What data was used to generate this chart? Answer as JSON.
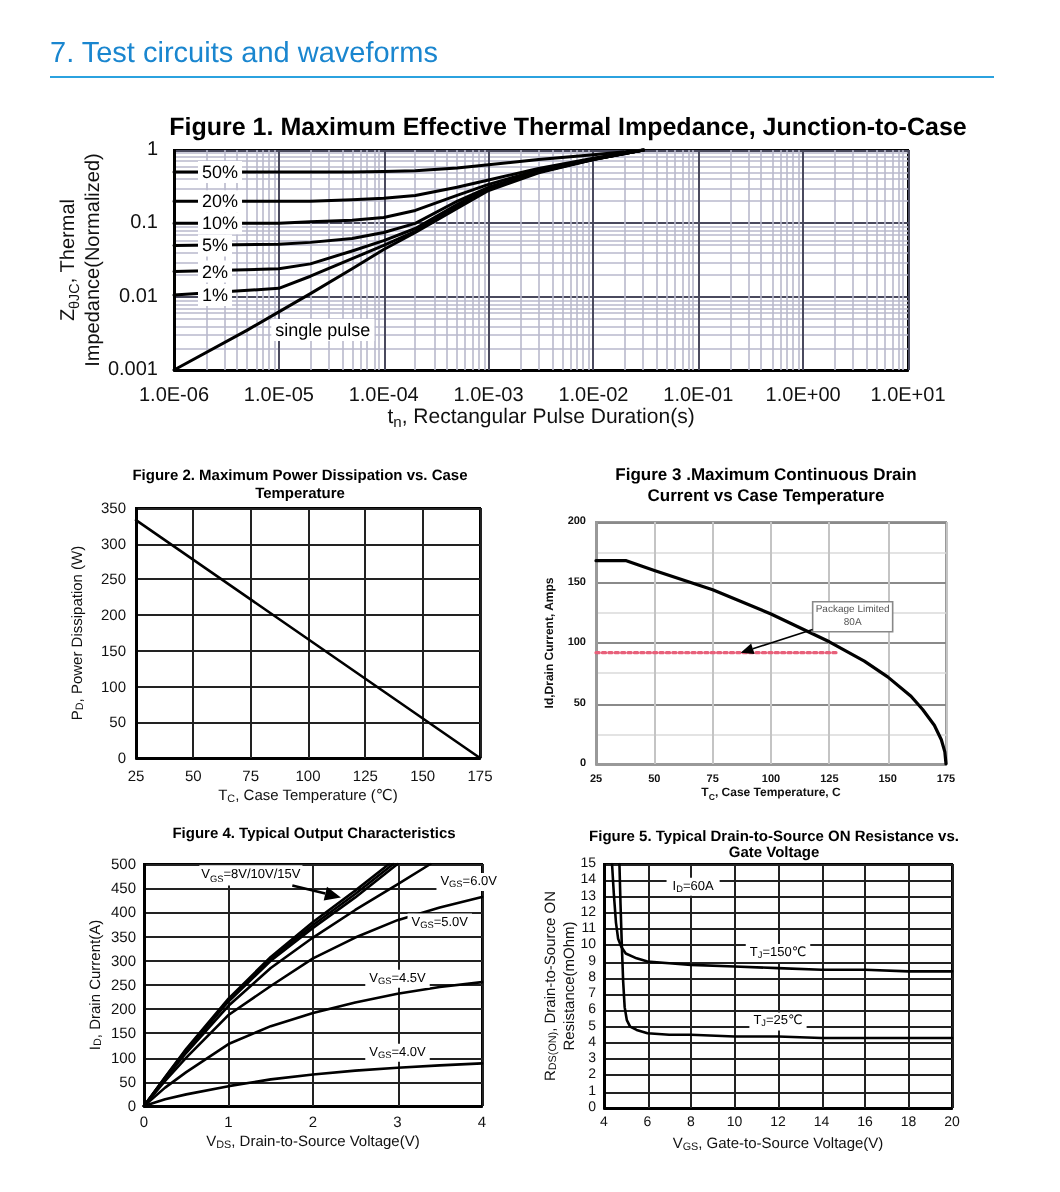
{
  "chart_data": [
    {
      "type": "other",
      "title": "7. Test circuits and waveforms"
    },
    {
      "type": "line",
      "title": "Figure 1. Maximum Effective Thermal Impedance, Junction-to-Case",
      "xlabel": "t$_{n}$, Rectangular Pulse Duration(s)",
      "ylabel": "Z$_{θJC}$, Thermal Impedance(Normalized)",
      "log": "xy",
      "xlim": [
        1e-06,
        10
      ],
      "ylim": [
        0.001,
        1
      ],
      "xticks": [
        {
          "value": 1e-06,
          "label": "1.0E-06"
        },
        {
          "value": 1e-05,
          "label": "1.0E-05"
        },
        {
          "value": 0.0001,
          "label": "1.0E-04"
        },
        {
          "value": 0.001,
          "label": "1.0E-03"
        },
        {
          "value": 0.01,
          "label": "1.0E-02"
        },
        {
          "value": 0.1,
          "label": "1.0E-01"
        },
        {
          "value": 1,
          "label": "1.0E+00"
        },
        {
          "value": 10,
          "label": "1.0E+01"
        },
        {
          "value": 2e-06,
          "label": null
        },
        {
          "value": 3e-06,
          "label": null
        },
        {
          "value": 4e-06,
          "label": null
        },
        {
          "value": 5e-06,
          "label": null
        },
        {
          "value": 6e-06,
          "label": null
        },
        {
          "value": 7e-06,
          "label": null
        },
        {
          "value": 8e-06,
          "label": null
        },
        {
          "value": 9e-06,
          "label": null
        },
        {
          "value": 2e-05,
          "label": null
        },
        {
          "value": 3e-05,
          "label": null
        },
        {
          "value": 4e-05,
          "label": null
        },
        {
          "value": 5e-05,
          "label": null
        },
        {
          "value": 6e-05,
          "label": null
        },
        {
          "value": 7e-05,
          "label": null
        },
        {
          "value": 8e-05,
          "label": null
        },
        {
          "value": 9e-05,
          "label": null
        },
        {
          "value": 0.0002,
          "label": null
        },
        {
          "value": 0.0003,
          "label": null
        },
        {
          "value": 0.0004,
          "label": null
        },
        {
          "value": 0.0005,
          "label": null
        },
        {
          "value": 0.0006,
          "label": null
        },
        {
          "value": 0.0007,
          "label": null
        },
        {
          "value": 0.0008,
          "label": null
        },
        {
          "value": 0.0009,
          "label": null
        },
        {
          "value": 0.002,
          "label": null
        },
        {
          "value": 0.003,
          "label": null
        },
        {
          "value": 0.004,
          "label": null
        },
        {
          "value": 0.005,
          "label": null
        },
        {
          "value": 0.006,
          "label": null
        },
        {
          "value": 0.007,
          "label": null
        },
        {
          "value": 0.008,
          "label": null
        },
        {
          "value": 0.009,
          "label": null
        },
        {
          "value": 0.02,
          "label": null
        },
        {
          "value": 0.03,
          "label": null
        },
        {
          "value": 0.04,
          "label": null
        },
        {
          "value": 0.05,
          "label": null
        },
        {
          "value": 0.06,
          "label": null
        },
        {
          "value": 0.07,
          "label": null
        },
        {
          "value": 0.08,
          "label": null
        },
        {
          "value": 0.09,
          "label": null
        },
        {
          "value": 0.2,
          "label": null
        },
        {
          "value": 0.3,
          "label": null
        },
        {
          "value": 0.4,
          "label": null
        },
        {
          "value": 0.5,
          "label": null
        },
        {
          "value": 0.6,
          "label": null
        },
        {
          "value": 0.7,
          "label": null
        },
        {
          "value": 0.8,
          "label": null
        },
        {
          "value": 0.9,
          "label": null
        },
        {
          "value": 2,
          "label": null
        },
        {
          "value": 3,
          "label": null
        },
        {
          "value": 4,
          "label": null
        },
        {
          "value": 5,
          "label": null
        },
        {
          "value": 6,
          "label": null
        },
        {
          "value": 7,
          "label": null
        },
        {
          "value": 8,
          "label": null
        },
        {
          "value": 9,
          "label": null
        }
      ],
      "yticks": [
        0.001,
        0.01,
        0.1,
        1,
        {
          "value": 0.002,
          "label": null
        },
        {
          "value": 0.003,
          "label": null
        },
        {
          "value": 0.004,
          "label": null
        },
        {
          "value": 0.005,
          "label": null
        },
        {
          "value": 0.006,
          "label": null
        },
        {
          "value": 0.007,
          "label": null
        },
        {
          "value": 0.008,
          "label": null
        },
        {
          "value": 0.009,
          "label": null
        },
        {
          "value": 0.02,
          "label": null
        },
        {
          "value": 0.03,
          "label": null
        },
        {
          "value": 0.04,
          "label": null
        },
        {
          "value": 0.05,
          "label": null
        },
        {
          "value": 0.06,
          "label": null
        },
        {
          "value": 0.07,
          "label": null
        },
        {
          "value": 0.08,
          "label": null
        },
        {
          "value": 0.09,
          "label": null
        },
        {
          "value": 0.2,
          "label": null
        },
        {
          "value": 0.3,
          "label": null
        },
        {
          "value": 0.4,
          "label": null
        },
        {
          "value": 0.5,
          "label": null
        },
        {
          "value": 0.6,
          "label": null
        },
        {
          "value": 0.7,
          "label": null
        },
        {
          "value": 0.8,
          "label": null
        },
        {
          "value": 0.9,
          "label": null
        }
      ],
      "grid": true,
      "x": [
        1e-06,
        1e-05,
        2e-05,
        5e-05,
        0.0001,
        0.0002,
        0.0005,
        0.001,
        0.003,
        0.01,
        0.03
      ],
      "series": [
        {
          "name": "50%",
          "color": "#000000",
          "values": [
            0.5,
            0.5,
            0.5,
            0.5,
            0.51,
            0.52,
            0.57,
            0.63,
            0.74,
            0.86,
            1
          ]
        },
        {
          "name": "20%",
          "color": "#000000",
          "values": [
            0.2,
            0.2,
            0.2,
            0.21,
            0.22,
            0.24,
            0.31,
            0.39,
            0.56,
            0.77,
            1
          ]
        },
        {
          "name": "10%",
          "color": "#000000",
          "values": [
            0.1,
            0.1,
            0.105,
            0.11,
            0.12,
            0.15,
            0.24,
            0.34,
            0.53,
            0.76,
            1
          ]
        },
        {
          "name": "5%",
          "color": "#000000",
          "values": [
            0.05,
            0.052,
            0.055,
            0.062,
            0.075,
            0.1,
            0.2,
            0.31,
            0.51,
            0.75,
            1
          ]
        },
        {
          "name": "2%",
          "color": "#000000",
          "values": [
            0.022,
            0.024,
            0.028,
            0.042,
            0.058,
            0.085,
            0.18,
            0.3,
            0.5,
            0.75,
            1
          ]
        },
        {
          "name": "1%",
          "color": "#000000",
          "values": [
            0.0105,
            0.013,
            0.019,
            0.033,
            0.05,
            0.078,
            0.17,
            0.29,
            0.5,
            0.74,
            1
          ]
        },
        {
          "name": "single pulse",
          "color": "#000000",
          "x": [
            1e-06,
            5e-06,
            1e-05,
            2e-05,
            5e-05,
            0.0001,
            0.0002,
            0.0005,
            0.001,
            0.003,
            0.01,
            0.03
          ],
          "values": [
            0.001,
            0.0035,
            0.0062,
            0.011,
            0.024,
            0.044,
            0.075,
            0.16,
            0.28,
            0.49,
            0.74,
            1
          ]
        }
      ]
    },
    {
      "type": "line",
      "title": "Figure 2. Maximum Power Dissipation vs. Case Temperature",
      "xlabel": "T$_{C}$, Case Temperature (℃)",
      "ylabel": "P$_{D}$, Power Dissipation (W)",
      "xlim": [
        25,
        175
      ],
      "ylim": [
        0,
        350
      ],
      "xticks": [
        25,
        50,
        75,
        100,
        125,
        150,
        175
      ],
      "yticks": [
        0,
        50,
        100,
        150,
        200,
        250,
        300,
        350
      ],
      "grid": true,
      "series": [
        {
          "color": "#000000",
          "x": [
            25,
            175
          ],
          "values": [
            333,
            0
          ]
        }
      ]
    },
    {
      "type": "line",
      "title": "Figure 3 .Maximum Continuous Drain Current vs Case Temperature",
      "xlabel": "T$_{C}$, Case Temperature, C",
      "ylabel": "Id,Drain Current, Amps",
      "xlim": [
        25,
        175
      ],
      "ylim": [
        0,
        200
      ],
      "xticks": [
        25,
        50,
        75,
        100,
        125,
        150,
        175
      ],
      "yticks": [
        0,
        {
          "value": 25,
          "label": null
        },
        50,
        {
          "value": 75,
          "label": null
        },
        100,
        {
          "value": 125,
          "label": null
        },
        150,
        {
          "value": 175,
          "label": null
        },
        200
      ],
      "grid": true,
      "series": [
        {
          "color": "#000000",
          "x": [
            25,
            38,
            50,
            75,
            100,
            125,
            140,
            150,
            160,
            165,
            170,
            173,
            174.5,
            175
          ],
          "values": [
            168,
            168,
            160,
            144,
            124,
            101,
            85,
            72,
            56,
            45,
            32,
            20,
            10,
            0
          ]
        },
        {
          "color": "#e8607a",
          "line_style": "dotted",
          "x": [
            25,
            128
          ],
          "values": [
            92,
            92
          ]
        }
      ],
      "annotations": [
        {
          "text": "Package Limited 80A",
          "x": 87,
          "y": 92
        }
      ]
    },
    {
      "type": "line",
      "title": "Figure 4. Typical Output Characteristics",
      "xlabel": "V$_{DS}$, Drain-to-Source Voltage(V)",
      "ylabel": "I$_{D}$, Drain Current(A)",
      "xlim": [
        0,
        4
      ],
      "ylim": [
        0,
        500
      ],
      "xticks": [
        0,
        1,
        2,
        3,
        4
      ],
      "yticks": [
        0,
        50,
        100,
        150,
        200,
        250,
        300,
        350,
        400,
        450,
        500
      ],
      "grid": true,
      "series": [
        {
          "color": "#000000",
          "x": [
            0,
            0.25,
            0.5,
            1,
            1.5,
            2,
            2.5,
            2.9
          ],
          "values": [
            0,
            60,
            118,
            222,
            308,
            380,
            445,
            500
          ]
        },
        {
          "color": "#000000",
          "x": [
            0,
            0.25,
            0.5,
            1,
            1.5,
            2,
            2.5,
            2.95
          ],
          "values": [
            0,
            59,
            116,
            219,
            304,
            374,
            438,
            500
          ]
        },
        {
          "color": "#000000",
          "x": [
            0,
            0.25,
            0.5,
            1,
            1.5,
            2,
            2.5,
            3
          ],
          "values": [
            0,
            58,
            114,
            216,
            300,
            368,
            431,
            500
          ]
        },
        {
          "name": "V$_{GS}$=6.0V",
          "color": "#000000",
          "x": [
            0,
            0.25,
            0.5,
            1,
            1.5,
            2,
            2.5,
            3,
            3.39
          ],
          "values": [
            0,
            56,
            110,
            207,
            285,
            348,
            405,
            458,
            500
          ]
        },
        {
          "name": "V$_{GS}$=5.0V",
          "color": "#000000",
          "x": [
            0,
            0.25,
            0.5,
            1,
            1.5,
            2,
            2.5,
            3,
            3.5,
            4
          ],
          "values": [
            0,
            52,
            100,
            188,
            248,
            305,
            348,
            384,
            410,
            432
          ]
        },
        {
          "name": "V$_{GS}$=4.5V",
          "color": "#000000",
          "x": [
            0,
            0.25,
            0.5,
            1,
            1.5,
            2,
            2.5,
            3,
            3.5,
            4
          ],
          "values": [
            0,
            38,
            70,
            128,
            165,
            192,
            214,
            232,
            246,
            256
          ]
        },
        {
          "name": "V$_{GS}$=4.0V",
          "color": "#000000",
          "x": [
            0,
            0.25,
            0.5,
            1,
            1.5,
            2,
            2.5,
            3,
            3.5,
            4
          ],
          "values": [
            0,
            14,
            24,
            41,
            55,
            65,
            73,
            79,
            84,
            88
          ]
        }
      ],
      "annotations": [
        {
          "text": "V$_{GS}$=8V/10V/15V",
          "x": 2.33,
          "y": 431
        }
      ]
    },
    {
      "type": "line",
      "title": "Figure 5. Typical Drain-to-Source ON Resistance vs. Gate Voltage",
      "xlabel": "V$_{GS}$, Gate-to-Source Voltage(V)",
      "ylabel": "R$_{DS(ON)}$, Drain-to-Source ON Resistance(mOhm)",
      "xlim": [
        4,
        20
      ],
      "ylim": [
        0,
        15
      ],
      "xticks": [
        4,
        6,
        8,
        10,
        12,
        14,
        16,
        18,
        20
      ],
      "yticks": [
        0,
        1,
        2,
        3,
        4,
        5,
        6,
        7,
        8,
        9,
        10,
        11,
        12,
        13,
        14,
        15
      ],
      "grid": true,
      "series": [
        {
          "name": "T$_{J}$=150℃",
          "color": "#000000",
          "x": [
            4.37,
            4.45,
            4.55,
            4.65,
            4.8,
            5,
            5.5,
            6,
            7,
            8,
            10,
            12,
            14,
            16,
            18,
            20
          ],
          "values": [
            15,
            13.2,
            11.4,
            10.4,
            9.9,
            9.5,
            9.2,
            9,
            8.9,
            8.8,
            8.7,
            8.6,
            8.5,
            8.5,
            8.4,
            8.4
          ]
        },
        {
          "name": "T$_{J}$=25℃",
          "color": "#000000",
          "x": [
            4.71,
            4.76,
            4.82,
            4.88,
            4.95,
            5.05,
            5.2,
            5.5,
            6,
            7,
            8,
            10,
            12,
            14,
            16,
            18,
            20
          ],
          "values": [
            15,
            12.5,
            10,
            7.8,
            6.2,
            5.4,
            5,
            4.8,
            4.6,
            4.5,
            4.5,
            4.4,
            4.4,
            4.3,
            4.3,
            4.3,
            4.3
          ]
        }
      ],
      "annotations": [
        "I$_{D}$=60A"
      ]
    }
  ]
}
